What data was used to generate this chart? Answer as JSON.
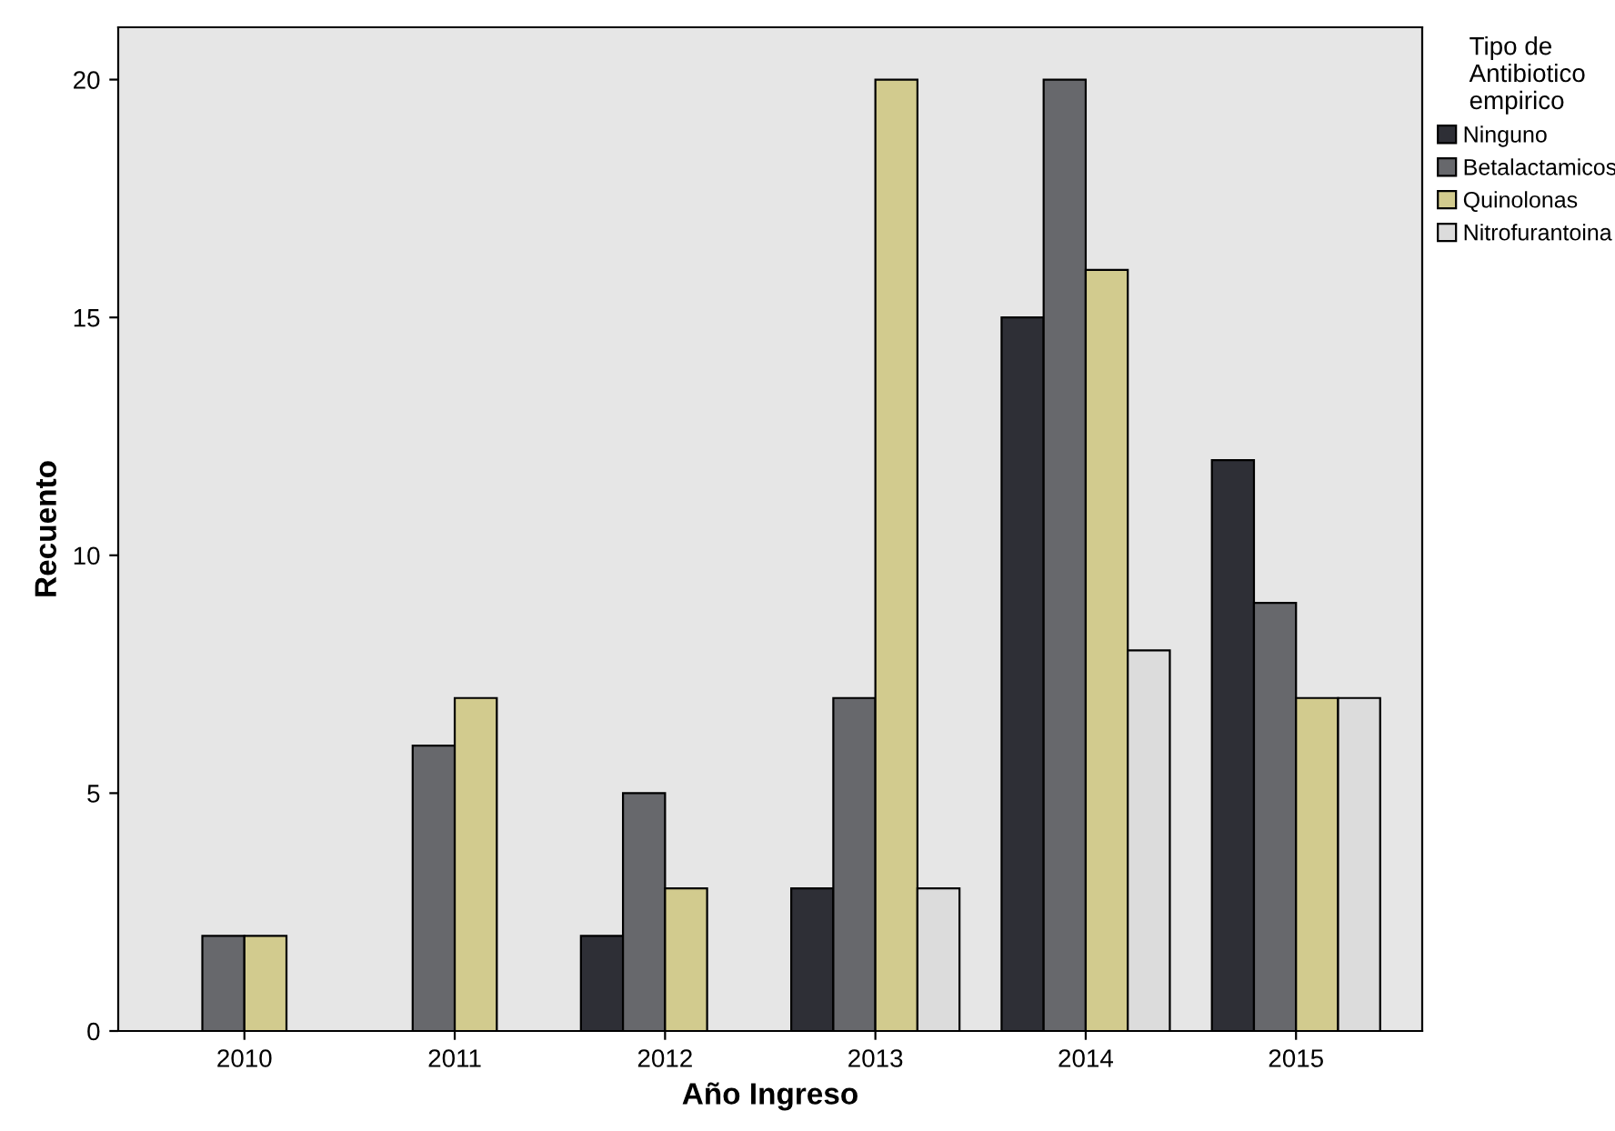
{
  "chart_data": {
    "type": "bar",
    "xlabel": "Año Ingreso",
    "ylabel": "Recuento",
    "legend_title": "Tipo de\nAntibiotico\nempirico",
    "categories": [
      "2010",
      "2011",
      "2012",
      "2013",
      "2014",
      "2015"
    ],
    "series": [
      {
        "name": "Ninguno",
        "color": "#2e2f36",
        "values": [
          null,
          null,
          2,
          3,
          15,
          12
        ]
      },
      {
        "name": "Betalactamicos",
        "color": "#67686c",
        "values": [
          2,
          6,
          5,
          7,
          20,
          9
        ]
      },
      {
        "name": "Quinolonas",
        "color": "#d2cb8e",
        "values": [
          2,
          7,
          3,
          20,
          16,
          7
        ]
      },
      {
        "name": "Nitrofurantoina",
        "color": "#dcdcdc",
        "values": [
          null,
          null,
          null,
          3,
          8,
          7
        ]
      }
    ],
    "ylim": [
      0,
      21.1
    ],
    "yticks": [
      0,
      5,
      10,
      15,
      20
    ],
    "grid": false,
    "legend": "right"
  }
}
